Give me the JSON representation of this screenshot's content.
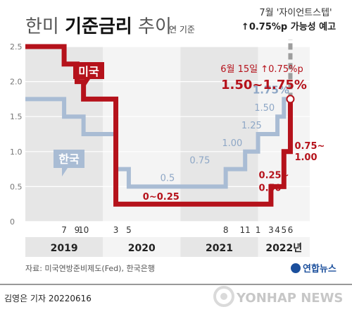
{
  "header": {
    "title_light_1": "한미 ",
    "title_bold": "기준금리",
    "title_light_2": " 추이",
    "unit_note": "연 기준",
    "forecast_line1": "7월 '자이언트스텝'",
    "forecast_line2": "↑0.75%p 가능성 예고"
  },
  "footer": {
    "source": "자료: 미국연방준비제도(Fed), 한국은행",
    "agency_logo_text": "연합뉴스",
    "reporter": "김영은 기자  20220616",
    "watermark": "YONHAP NEWS"
  },
  "colors": {
    "us": "#b5121b",
    "korea": "#a9bcd4",
    "forecast": "#9e9e9e",
    "band_dark": "#e6e6e6",
    "band_light": "#f4f4f4"
  },
  "chart_data": {
    "type": "line",
    "step": true,
    "ylim": [
      0,
      2.5
    ],
    "yticks": [
      0,
      0.5,
      1.0,
      1.5,
      2.0,
      2.5
    ],
    "ytick_labels": [
      "0",
      "0.5",
      "1.0",
      "1.5",
      "2.0",
      "2.5"
    ],
    "xrange": [
      "2019-01",
      "2022-09"
    ],
    "x_month_ticks": [
      {
        "label": "7",
        "t": "2019-07"
      },
      {
        "label": "9",
        "t": "2019-09"
      },
      {
        "label": "10",
        "t": "2019-10"
      },
      {
        "label": "3",
        "t": "2020-03"
      },
      {
        "label": "5",
        "t": "2020-05"
      },
      {
        "label": "8",
        "t": "2021-08"
      },
      {
        "label": "11",
        "t": "2021-11"
      },
      {
        "label": "1",
        "t": "2022-01"
      },
      {
        "label": "3",
        "t": "2022-03"
      },
      {
        "label": "4",
        "t": "2022-04"
      },
      {
        "label": "5",
        "t": "2022-05"
      },
      {
        "label": "6",
        "t": "2022-06"
      }
    ],
    "year_labels": [
      "2019",
      "2020",
      "2021",
      "2022년"
    ],
    "series": [
      {
        "name": "미국",
        "color": "#b5121b",
        "steps": [
          {
            "t": "2019-01",
            "y": 2.5
          },
          {
            "t": "2019-07",
            "y": 2.25
          },
          {
            "t": "2019-09",
            "y": 2.0
          },
          {
            "t": "2019-10",
            "y": 1.75
          },
          {
            "t": "2020-03",
            "y": 0.25
          },
          {
            "t": "2022-03",
            "y": 0.5
          },
          {
            "t": "2022-05",
            "y": 1.0
          },
          {
            "t": "2022-06",
            "y": 1.75
          }
        ],
        "end": "2022-06"
      },
      {
        "name": "한국",
        "color": "#a9bcd4",
        "steps": [
          {
            "t": "2019-01",
            "y": 1.75
          },
          {
            "t": "2019-07",
            "y": 1.5
          },
          {
            "t": "2019-10",
            "y": 1.25
          },
          {
            "t": "2020-03",
            "y": 0.75
          },
          {
            "t": "2020-05",
            "y": 0.5
          },
          {
            "t": "2021-08",
            "y": 0.75
          },
          {
            "t": "2021-11",
            "y": 1.0
          },
          {
            "t": "2022-01",
            "y": 1.25
          },
          {
            "t": "2022-04",
            "y": 1.5
          },
          {
            "t": "2022-05",
            "y": 1.75
          }
        ],
        "end": "2022-06"
      }
    ],
    "forecast": {
      "t": "2022-06",
      "from": 1.75,
      "to": 2.5
    },
    "data_labels": {
      "korea": [
        {
          "text": "0.5",
          "t": "2020-11",
          "y": 0.5
        },
        {
          "text": "0.75",
          "t": "2021-04",
          "y": 0.75
        },
        {
          "text": "1.00",
          "t": "2021-09",
          "y": 1.0
        },
        {
          "text": "1.25",
          "t": "2021-12",
          "y": 1.25
        },
        {
          "text": "1.50",
          "t": "2022-02",
          "y": 1.5
        },
        {
          "text": "1.75%",
          "t": "2022-03",
          "y": 1.75
        }
      ],
      "us": [
        {
          "text": "0~0.25",
          "t": "2020-10",
          "y": 0.25
        },
        {
          "text": "0.25~",
          "t": "2022-02",
          "y": 0.5
        },
        {
          "text": "0.50",
          "t": "2022-02",
          "y": 0.5
        },
        {
          "text": "0.75~",
          "t": "2022-07",
          "y": 1.0
        },
        {
          "text": "1.00",
          "t": "2022-07",
          "y": 1.0
        }
      ]
    },
    "legend_us": "미국",
    "legend_korea": "한국",
    "us_callout_line1": "6월 15일 ↑0.75%p",
    "us_callout_line2": "1.50~1.75%"
  }
}
